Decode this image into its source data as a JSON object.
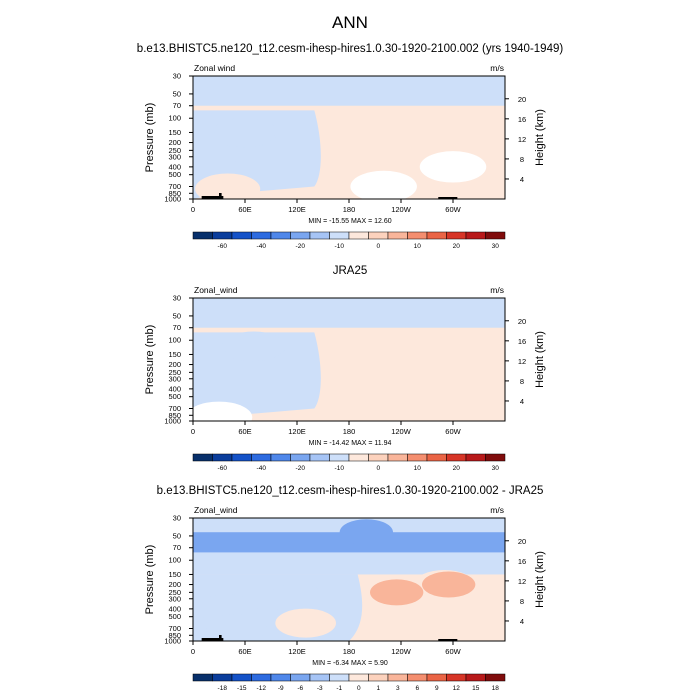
{
  "figure_title": "ANN",
  "colors": {
    "palette": [
      "#08306b",
      "#0a3d9c",
      "#1452c8",
      "#2d6be0",
      "#4f87ea",
      "#7aa6f0",
      "#a6c4f5",
      "#cddff9",
      "#ffffff",
      "#fde8dc",
      "#fcd2bd",
      "#f9b59a",
      "#f48e6f",
      "#ea6445",
      "#d73527",
      "#b8191a",
      "#800c0c"
    ],
    "land": "#000000"
  },
  "chart_data": [
    {
      "type": "heatmap",
      "title": "b.e13.BHISTC5.ne120_t12.cesm-ihesp-hires1.0.30-1920-2100.002 (yrs 1940-1949)",
      "left_label": "Zonal wind",
      "units": "m/s",
      "stats": "MIN = -15.55   MAX = 12.60",
      "y_title": "Pressure (mb)",
      "y2_title": "Height (km)",
      "x_ticks": [
        "0",
        "60E",
        "120E",
        "180",
        "120W",
        "60W"
      ],
      "p_ticks": [
        "30",
        "50",
        "70",
        "100",
        "150",
        "200",
        "250",
        "300",
        "400",
        "500",
        "700",
        "850",
        "1000"
      ],
      "z_ticks": [
        "20",
        "16",
        "12",
        "8",
        "4"
      ],
      "levels": [
        "-60",
        "-40",
        "-20",
        "-10",
        "0",
        "10",
        "20",
        "30"
      ],
      "blobs": [
        {
          "lon": 60,
          "p": 150,
          "level": -4
        },
        {
          "lon": 60,
          "p": 150,
          "level": -10
        },
        {
          "lon": 30,
          "p": 500,
          "level": -4
        },
        {
          "lon": 220,
          "p": 700,
          "level": -2
        },
        {
          "lon": 300,
          "p": 400,
          "level": -2
        },
        {
          "lon": 210,
          "p": 150,
          "level": 4
        },
        {
          "lon": 215,
          "p": 150,
          "level": 8
        },
        {
          "lon": 220,
          "p": 150,
          "level": 10
        },
        {
          "lon": 280,
          "p": 150,
          "level": 4
        },
        {
          "lon": 285,
          "p": 150,
          "level": 8
        },
        {
          "lon": 40,
          "p": 750,
          "level": 4
        },
        {
          "lon": 40,
          "p": 750,
          "level": 8
        }
      ]
    },
    {
      "type": "heatmap",
      "title": "JRA25",
      "left_label": "Zonal_wind",
      "units": "m/s",
      "stats": "MIN = -14.42   MAX = 11.94",
      "y_title": "Pressure (mb)",
      "y2_title": "Height (km)",
      "x_ticks": [
        "0",
        "60E",
        "120E",
        "180",
        "120W",
        "60W"
      ],
      "p_ticks": [
        "30",
        "50",
        "70",
        "100",
        "150",
        "200",
        "250",
        "300",
        "400",
        "500",
        "700",
        "850",
        "1000"
      ],
      "z_ticks": [
        "20",
        "16",
        "12",
        "8",
        "4"
      ],
      "levels": [
        "-60",
        "-40",
        "-20",
        "-10",
        "0",
        "10",
        "20",
        "30"
      ],
      "blobs": [
        {
          "lon": 70,
          "p": 120,
          "level": -6
        },
        {
          "lon": 70,
          "p": 120,
          "level": -10
        },
        {
          "lon": 200,
          "p": 150,
          "level": 4
        },
        {
          "lon": 205,
          "p": 150,
          "level": 8
        },
        {
          "lon": 210,
          "p": 150,
          "level": 10
        },
        {
          "lon": 275,
          "p": 150,
          "level": 4
        },
        {
          "lon": 30,
          "p": 900,
          "level": 2
        }
      ]
    },
    {
      "type": "heatmap",
      "title": "b.e13.BHISTC5.ne120_t12.cesm-ihesp-hires1.0.30-1920-2100.002 - JRA25",
      "left_label": "Zonal_wind",
      "units": "m/s",
      "stats": "MIN = -6.34   MAX =  5.90",
      "y_title": "Pressure (mb)",
      "y2_title": "Height (km)",
      "x_ticks": [
        "0",
        "60E",
        "120E",
        "180",
        "120W",
        "60W"
      ],
      "p_ticks": [
        "30",
        "50",
        "70",
        "100",
        "150",
        "200",
        "250",
        "300",
        "400",
        "500",
        "700",
        "850",
        "1000"
      ],
      "z_ticks": [
        "20",
        "16",
        "12",
        "8",
        "4"
      ],
      "levels": [
        "-18",
        "-15",
        "-12",
        "-9",
        "-6",
        "-3",
        "-1",
        "0",
        "1",
        "3",
        "6",
        "9",
        "12",
        "15",
        "18"
      ],
      "blobs": [
        {
          "lon": 120,
          "p": 300,
          "level": -3
        },
        {
          "lon": 40,
          "p": 400,
          "level": -3
        },
        {
          "lon": 50,
          "p": 700,
          "level": -3
        },
        {
          "lon": 200,
          "p": 45,
          "level": -6
        },
        {
          "lon": 265,
          "p": 250,
          "level": 3
        },
        {
          "lon": 290,
          "p": 200,
          "level": 3
        },
        {
          "lon": 295,
          "p": 200,
          "level": 6
        },
        {
          "lon": 235,
          "p": 250,
          "level": 6
        },
        {
          "lon": 305,
          "p": 500,
          "level": 3
        },
        {
          "lon": 130,
          "p": 600,
          "level": 3
        }
      ]
    }
  ]
}
